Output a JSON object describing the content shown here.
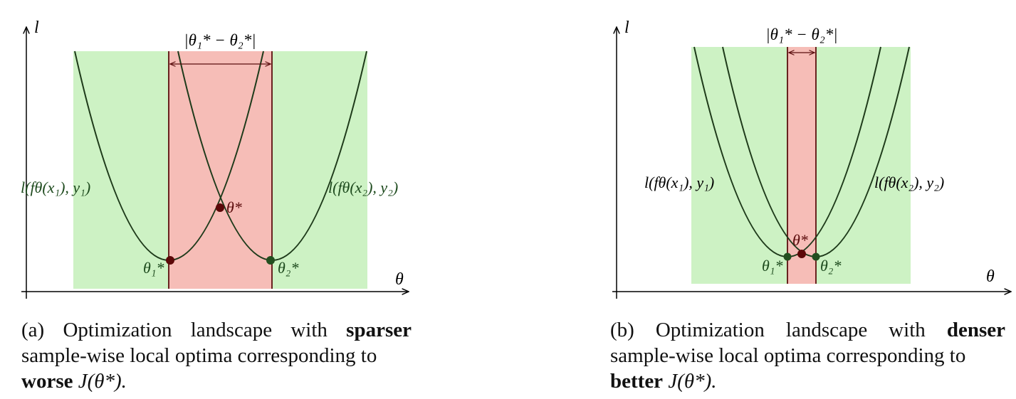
{
  "colors": {
    "green_region": "#cdf2c4",
    "red_region": "#f6bdb7",
    "curve": "#1e3a1a",
    "red_line": "#5a0e0e",
    "dot_red": "#5c0808",
    "dot_green": "#234f1f",
    "axis": "#000000",
    "label_green": "#1d4a1d",
    "label_red": "#5a0b0b"
  },
  "panels": [
    {
      "id": "a",
      "axis_y_label": "l",
      "axis_x_label": "θ",
      "distance_label": "|θ₁* − θ₂*|",
      "loss1_label": "l(fθ(x₁), y₁)",
      "loss2_label": "l(fθ(x₂), y₂)",
      "theta1_label": "θ₁*",
      "theta2_label": "θ₂*",
      "theta_star_label": "θ*",
      "caption": {
        "line1_pre": "(a) Optimization landscape with",
        "line1_bold": "sparser",
        "line2": "sample-wise local optima corresponding to",
        "line3_bold": "worse",
        "line3_math": "J(θ*)."
      }
    },
    {
      "id": "b",
      "axis_y_label": "l",
      "axis_x_label": "θ",
      "distance_label": "|θ₁* − θ₂*|",
      "loss1_label": "l(fθ(x₁), y₁)",
      "loss2_label": "l(fθ(x₂), y₂)",
      "theta1_label": "θ₁*",
      "theta2_label": "θ₂*",
      "theta_star_label": "θ*",
      "caption": {
        "line1_pre": "(b) Optimization landscape with",
        "line1_bold": "denser",
        "line2": "sample-wise local optima corresponding to",
        "line3_bold": "better",
        "line3_math": "J(θ*)."
      }
    }
  ]
}
